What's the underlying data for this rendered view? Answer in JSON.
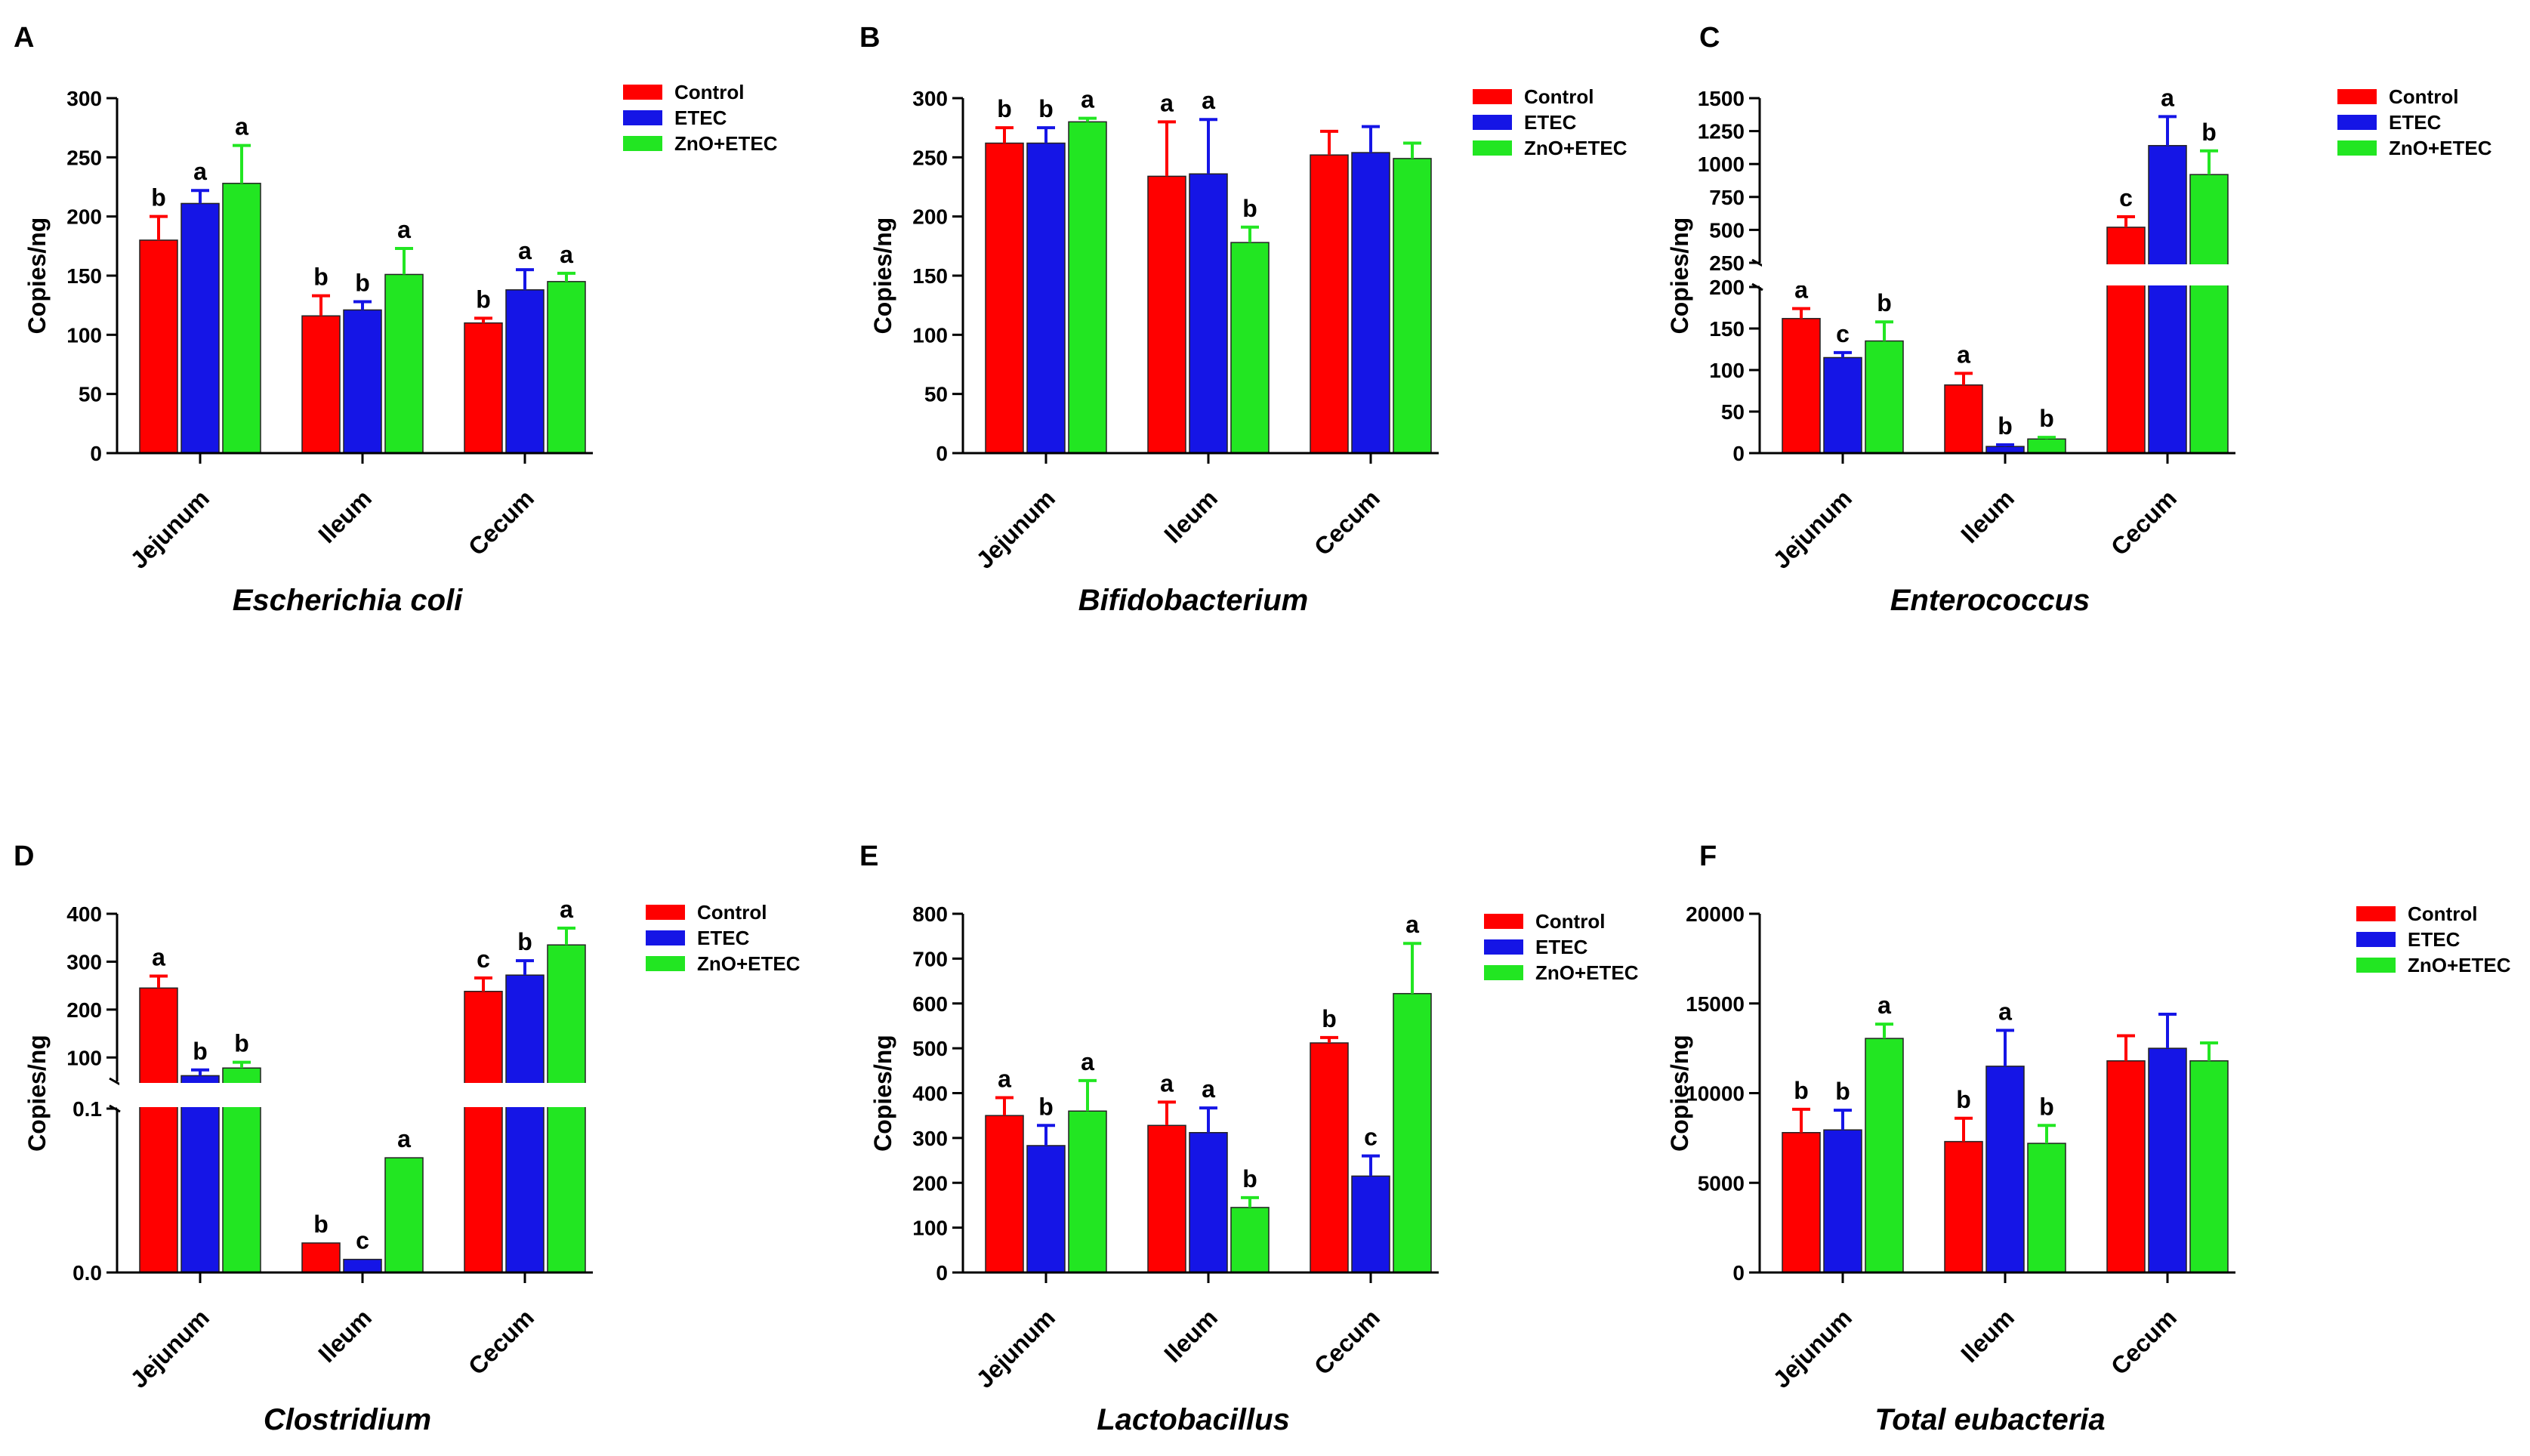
{
  "colors": {
    "Control": "#ff0000",
    "ETEC": "#1515e6",
    "ZnO+ETEC": "#22e622"
  },
  "chart_data": [
    {
      "panel": "A",
      "type": "bar",
      "title": "Escherichia coli",
      "ylabel": "Copies/ng",
      "categories": [
        "Jejunum",
        "Ileum",
        "Cecum"
      ],
      "ylim": [
        0,
        300
      ],
      "yticks": [
        "0",
        "50",
        "100",
        "150",
        "200",
        "250",
        "300"
      ],
      "series": [
        {
          "name": "Control",
          "values": [
            180,
            116,
            110
          ],
          "errors": [
            20,
            17,
            4
          ],
          "labels": [
            "b",
            "b",
            "b"
          ]
        },
        {
          "name": "ETEC",
          "values": [
            211,
            121,
            138
          ],
          "errors": [
            11,
            7,
            17
          ],
          "labels": [
            "a",
            "b",
            "a"
          ]
        },
        {
          "name": "ZnO+ETEC",
          "values": [
            228,
            151,
            145
          ],
          "errors": [
            32,
            22,
            7
          ],
          "labels": [
            "a",
            "a",
            "a"
          ]
        }
      ]
    },
    {
      "panel": "B",
      "type": "bar",
      "title": "Bifidobacterium",
      "ylabel": "Copies/ng",
      "categories": [
        "Jejunum",
        "Ileum",
        "Cecum"
      ],
      "ylim": [
        0,
        300
      ],
      "yticks": [
        "0",
        "50",
        "100",
        "150",
        "200",
        "250",
        "300"
      ],
      "series": [
        {
          "name": "Control",
          "values": [
            262,
            234,
            252
          ],
          "errors": [
            13,
            46,
            20
          ],
          "labels": [
            "b",
            "a",
            ""
          ]
        },
        {
          "name": "ETEC",
          "values": [
            262,
            236,
            254
          ],
          "errors": [
            13,
            46,
            22
          ],
          "labels": [
            "b",
            "a",
            ""
          ]
        },
        {
          "name": "ZnO+ETEC",
          "values": [
            280,
            178,
            249
          ],
          "errors": [
            3,
            13,
            13
          ],
          "labels": [
            "a",
            "b",
            ""
          ]
        }
      ]
    },
    {
      "panel": "C",
      "type": "bar",
      "title": "Enterococcus",
      "ylabel": "Copies/ng",
      "categories": [
        "Jejunum",
        "Ileum",
        "Cecum"
      ],
      "ylim": [
        0,
        1500
      ],
      "axis_break": [
        200,
        250
      ],
      "yticks": [
        "0",
        "50",
        "100",
        "150",
        "200",
        "250",
        "500",
        "750",
        "1000",
        "1250",
        "1500"
      ],
      "series": [
        {
          "name": "Control",
          "values": [
            162,
            82,
            520
          ],
          "errors": [
            12,
            14,
            80
          ],
          "labels": [
            "a",
            "a",
            "c"
          ]
        },
        {
          "name": "ETEC",
          "values": [
            115,
            8,
            1140
          ],
          "errors": [
            6,
            2,
            220
          ],
          "labels": [
            "c",
            "b",
            "a"
          ]
        },
        {
          "name": "ZnO+ETEC",
          "values": [
            135,
            17,
            920
          ],
          "errors": [
            23,
            2,
            180
          ],
          "labels": [
            "b",
            "b",
            "b"
          ]
        }
      ]
    },
    {
      "panel": "D",
      "type": "bar",
      "title": "Clostridium",
      "ylabel": "Copies/ng",
      "categories": [
        "Jejunum",
        "Ileum",
        "Cecum"
      ],
      "ylim": [
        0,
        400
      ],
      "axis_break": [
        0.1,
        50
      ],
      "yticks": [
        "0.0",
        "0.1",
        "100",
        "200",
        "300",
        "400"
      ],
      "series": [
        {
          "name": "Control",
          "values": [
            245,
            0.018,
            238
          ],
          "errors": [
            25,
            0,
            28
          ],
          "labels": [
            "a",
            "b",
            "c"
          ]
        },
        {
          "name": "ETEC",
          "values": [
            62,
            0.008,
            272
          ],
          "errors": [
            12,
            0,
            30
          ],
          "labels": [
            "b",
            "c",
            "b"
          ]
        },
        {
          "name": "ZnO+ETEC",
          "values": [
            78,
            0.07,
            335
          ],
          "errors": [
            12,
            0,
            35
          ],
          "labels": [
            "b",
            "a",
            "a"
          ]
        }
      ]
    },
    {
      "panel": "E",
      "type": "bar",
      "title": "Lactobacillus",
      "ylabel": "Copies/ng",
      "categories": [
        "Jejunum",
        "Ileum",
        "Cecum"
      ],
      "ylim": [
        0,
        800
      ],
      "yticks": [
        "0",
        "100",
        "200",
        "300",
        "400",
        "500",
        "600",
        "700",
        "800"
      ],
      "series": [
        {
          "name": "Control",
          "values": [
            350,
            328,
            512
          ],
          "errors": [
            40,
            52,
            12
          ],
          "labels": [
            "a",
            "a",
            "b"
          ]
        },
        {
          "name": "ETEC",
          "values": [
            283,
            312,
            215
          ],
          "errors": [
            45,
            55,
            45
          ],
          "labels": [
            "b",
            "a",
            "c"
          ]
        },
        {
          "name": "ZnO+ETEC",
          "values": [
            360,
            145,
            622
          ],
          "errors": [
            68,
            22,
            112
          ],
          "labels": [
            "a",
            "b",
            "a"
          ]
        }
      ]
    },
    {
      "panel": "F",
      "type": "bar",
      "title": "Total eubacteria",
      "ylabel": "Copies/ng",
      "categories": [
        "Jejunum",
        "Ileum",
        "Cecum"
      ],
      "ylim": [
        0,
        20000
      ],
      "yticks": [
        "0",
        "5000",
        "10000",
        "15000",
        "20000"
      ],
      "series": [
        {
          "name": "Control",
          "values": [
            7800,
            7300,
            11800
          ],
          "errors": [
            1300,
            1300,
            1400
          ],
          "labels": [
            "b",
            "b",
            ""
          ]
        },
        {
          "name": "ETEC",
          "values": [
            7950,
            11500,
            12500
          ],
          "errors": [
            1100,
            2000,
            1900
          ],
          "labels": [
            "b",
            "a",
            ""
          ]
        },
        {
          "name": "ZnO+ETEC",
          "values": [
            13050,
            7200,
            11800
          ],
          "errors": [
            800,
            1000,
            1000
          ],
          "labels": [
            "a",
            "b",
            ""
          ]
        }
      ]
    }
  ]
}
